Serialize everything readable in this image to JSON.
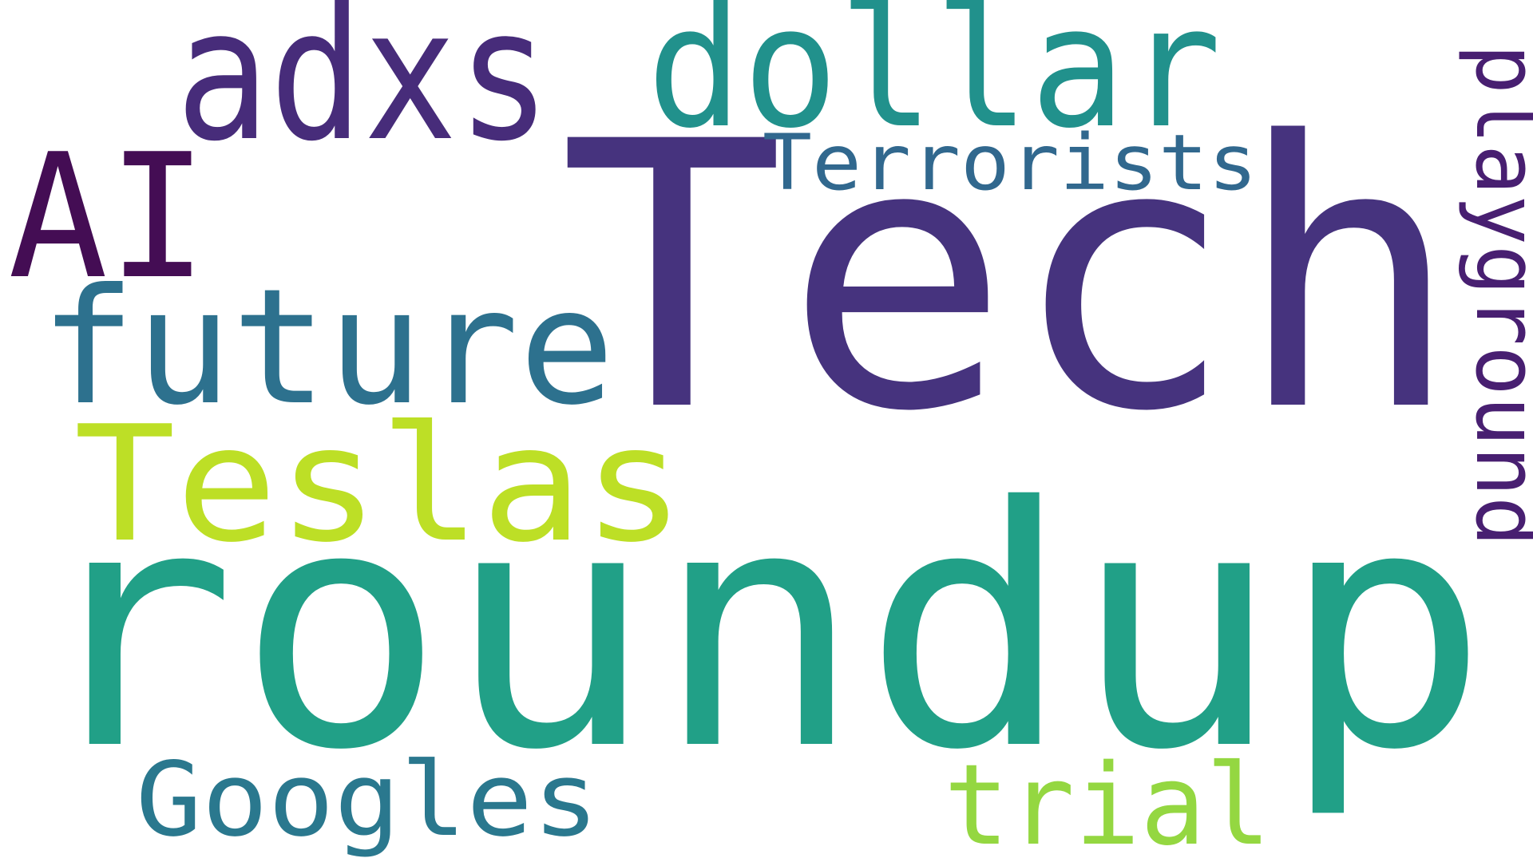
{
  "words": [
    {
      "text": "Tech",
      "color": "#46337e"
    },
    {
      "text": "roundup",
      "color": "#21a087"
    },
    {
      "text": "AI",
      "color": "#440d54"
    },
    {
      "text": "adxs",
      "color": "#472c7a"
    },
    {
      "text": "dollar",
      "color": "#21918c"
    },
    {
      "text": "Terrorists",
      "color": "#31688e"
    },
    {
      "text": "future",
      "color": "#2d718e"
    },
    {
      "text": "Teslas",
      "color": "#bddf26"
    },
    {
      "text": "playground",
      "color": "#481f71"
    },
    {
      "text": "Googles",
      "color": "#2a788e"
    },
    {
      "text": "trial",
      "color": "#94d741"
    }
  ]
}
